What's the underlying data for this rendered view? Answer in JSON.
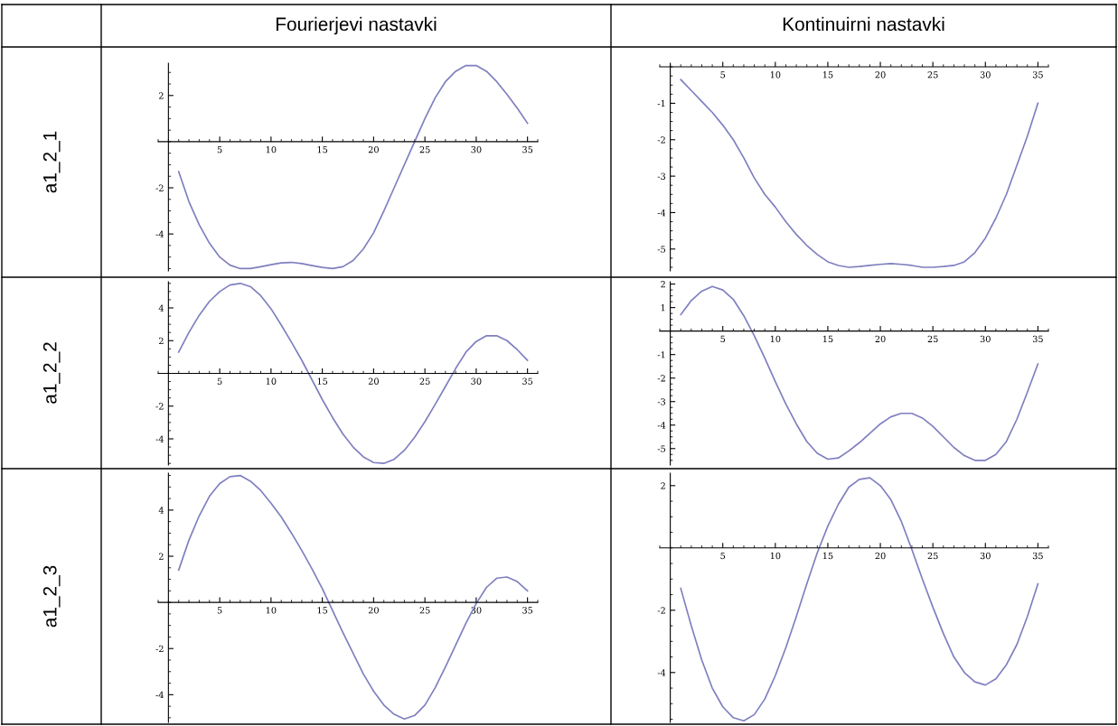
{
  "chart_data": [
    {
      "type": "line",
      "title": "Fourierjevi nastavki",
      "ylabel": "a1_2_1",
      "x": [
        1,
        2,
        3,
        4,
        5,
        6,
        7,
        8,
        9,
        10,
        11,
        12,
        13,
        14,
        15,
        16,
        17,
        18,
        19,
        20,
        21,
        22,
        23,
        24,
        25,
        26,
        27,
        28,
        29,
        30,
        31,
        32,
        33,
        34,
        35
      ],
      "xlim": [
        -1,
        36
      ],
      "ylim": [
        -5.6,
        3.4
      ],
      "xticks": [
        5,
        10,
        15,
        20,
        25,
        30,
        35
      ],
      "yticks": [
        -4,
        -2,
        2
      ],
      "series": [
        {
          "color": "#7f7fbf",
          "values": [
            -1.3,
            -2.6,
            -3.6,
            -4.4,
            -5.0,
            -5.35,
            -5.5,
            -5.5,
            -5.42,
            -5.33,
            -5.25,
            -5.23,
            -5.28,
            -5.37,
            -5.45,
            -5.5,
            -5.42,
            -5.15,
            -4.65,
            -3.95,
            -3.0,
            -2.0,
            -1.0,
            0.0,
            1.0,
            1.9,
            2.6,
            3.05,
            3.3,
            3.3,
            3.05,
            2.6,
            2.05,
            1.45,
            0.8
          ]
        }
      ]
    },
    {
      "type": "line",
      "title": "Kontinuirni nastavki",
      "x": [
        1,
        2,
        3,
        4,
        5,
        6,
        7,
        8,
        9,
        10,
        11,
        12,
        13,
        14,
        15,
        16,
        17,
        18,
        19,
        20,
        21,
        22,
        23,
        24,
        25,
        26,
        27,
        28,
        29,
        30,
        31,
        32,
        33,
        34,
        35
      ],
      "xlim": [
        -1,
        36
      ],
      "ylim": [
        -5.6,
        0.1
      ],
      "xticks": [
        5,
        10,
        15,
        20,
        25,
        30,
        35
      ],
      "yticks": [
        -5,
        -4,
        -3,
        -2,
        -1
      ],
      "series": [
        {
          "color": "#7f7fbf",
          "values": [
            -0.35,
            -0.65,
            -0.95,
            -1.25,
            -1.6,
            -2.0,
            -2.5,
            -3.05,
            -3.5,
            -3.85,
            -4.25,
            -4.6,
            -4.9,
            -5.15,
            -5.35,
            -5.45,
            -5.5,
            -5.48,
            -5.45,
            -5.42,
            -5.4,
            -5.42,
            -5.45,
            -5.5,
            -5.5,
            -5.48,
            -5.45,
            -5.35,
            -5.1,
            -4.7,
            -4.15,
            -3.5,
            -2.7,
            -1.9,
            -1.0
          ]
        }
      ]
    },
    {
      "type": "line",
      "ylabel": "a1_2_2",
      "x": [
        1,
        2,
        3,
        4,
        5,
        6,
        7,
        8,
        9,
        10,
        11,
        12,
        13,
        14,
        15,
        16,
        17,
        18,
        19,
        20,
        21,
        22,
        23,
        24,
        25,
        26,
        27,
        28,
        29,
        30,
        31,
        32,
        33,
        34,
        35
      ],
      "xlim": [
        -1,
        36
      ],
      "ylim": [
        -5.6,
        5.6
      ],
      "xticks": [
        5,
        10,
        15,
        20,
        25,
        30,
        35
      ],
      "yticks": [
        -4,
        -2,
        2,
        4
      ],
      "series": [
        {
          "color": "#7f7fbf",
          "values": [
            1.3,
            2.5,
            3.55,
            4.4,
            5.0,
            5.4,
            5.5,
            5.3,
            4.75,
            3.95,
            2.95,
            1.9,
            0.8,
            -0.4,
            -1.6,
            -2.7,
            -3.7,
            -4.5,
            -5.1,
            -5.45,
            -5.5,
            -5.25,
            -4.7,
            -3.9,
            -2.95,
            -1.9,
            -0.8,
            0.3,
            1.3,
            1.95,
            2.3,
            2.3,
            2.0,
            1.45,
            0.8
          ]
        }
      ]
    },
    {
      "type": "line",
      "x": [
        1,
        2,
        3,
        4,
        5,
        6,
        7,
        8,
        9,
        10,
        11,
        12,
        13,
        14,
        15,
        16,
        17,
        18,
        19,
        20,
        21,
        22,
        23,
        24,
        25,
        26,
        27,
        28,
        29,
        30,
        31,
        32,
        33,
        34,
        35
      ],
      "xlim": [
        -1,
        36
      ],
      "ylim": [
        -5.7,
        2.1
      ],
      "xticks": [
        5,
        10,
        15,
        20,
        25,
        30,
        35
      ],
      "yticks": [
        -5,
        -4,
        -3,
        -2,
        -1,
        1,
        2
      ],
      "series": [
        {
          "color": "#7f7fbf",
          "values": [
            0.7,
            1.3,
            1.7,
            1.9,
            1.75,
            1.35,
            0.65,
            -0.2,
            -1.15,
            -2.15,
            -3.1,
            -3.95,
            -4.7,
            -5.2,
            -5.45,
            -5.4,
            -5.1,
            -4.75,
            -4.35,
            -3.95,
            -3.65,
            -3.5,
            -3.5,
            -3.7,
            -4.05,
            -4.5,
            -4.95,
            -5.3,
            -5.5,
            -5.5,
            -5.25,
            -4.7,
            -3.75,
            -2.6,
            -1.4
          ]
        }
      ]
    },
    {
      "type": "line",
      "ylabel": "a1_2_3",
      "x": [
        1,
        2,
        3,
        4,
        5,
        6,
        7,
        8,
        9,
        10,
        11,
        12,
        13,
        14,
        15,
        16,
        17,
        18,
        19,
        20,
        21,
        22,
        23,
        24,
        25,
        26,
        27,
        28,
        29,
        30,
        31,
        32,
        33,
        34,
        35
      ],
      "xlim": [
        -1,
        36
      ],
      "ylim": [
        -5.2,
        5.6
      ],
      "xticks": [
        5,
        10,
        15,
        20,
        25,
        30,
        35
      ],
      "yticks": [
        -4,
        -2,
        2,
        4
      ],
      "series": [
        {
          "color": "#7f7fbf",
          "values": [
            1.4,
            2.7,
            3.75,
            4.6,
            5.15,
            5.45,
            5.5,
            5.25,
            4.85,
            4.3,
            3.7,
            3.0,
            2.25,
            1.45,
            0.6,
            -0.35,
            -1.3,
            -2.2,
            -3.1,
            -3.85,
            -4.45,
            -4.85,
            -5.05,
            -4.9,
            -4.45,
            -3.7,
            -2.8,
            -1.85,
            -0.9,
            -0.05,
            0.65,
            1.05,
            1.1,
            0.9,
            0.5
          ]
        }
      ]
    },
    {
      "type": "line",
      "x": [
        1,
        2,
        3,
        4,
        5,
        6,
        7,
        8,
        9,
        10,
        11,
        12,
        13,
        14,
        15,
        16,
        17,
        18,
        19,
        20,
        21,
        22,
        23,
        24,
        25,
        26,
        27,
        28,
        29,
        30,
        31,
        32,
        33,
        34,
        35
      ],
      "xlim": [
        -1,
        36
      ],
      "ylim": [
        -5.6,
        2.4
      ],
      "xticks": [
        5,
        10,
        15,
        20,
        25,
        30,
        35
      ],
      "yticks": [
        -4,
        -2,
        2
      ],
      "series": [
        {
          "color": "#7f7fbf",
          "values": [
            -1.3,
            -2.5,
            -3.6,
            -4.5,
            -5.1,
            -5.45,
            -5.55,
            -5.35,
            -4.85,
            -4.1,
            -3.2,
            -2.2,
            -1.15,
            -0.15,
            0.7,
            1.4,
            1.95,
            2.2,
            2.25,
            2.0,
            1.55,
            0.85,
            -0.05,
            -1.0,
            -1.9,
            -2.75,
            -3.5,
            -4.0,
            -4.3,
            -4.4,
            -4.2,
            -3.75,
            -3.1,
            -2.2,
            -1.15
          ]
        }
      ]
    }
  ]
}
